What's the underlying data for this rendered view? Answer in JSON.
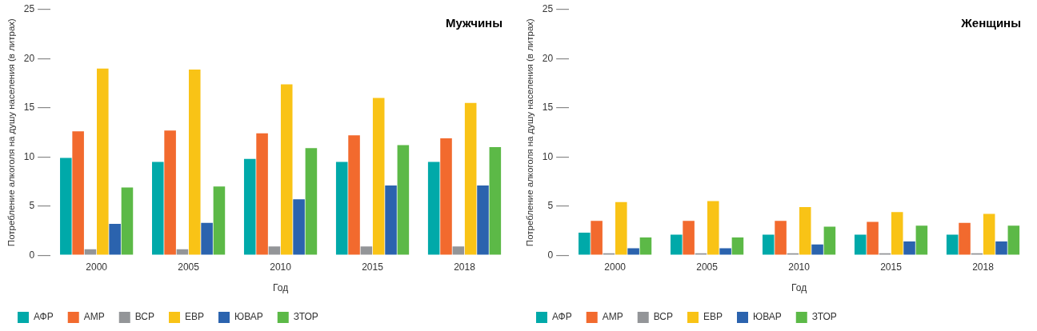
{
  "chart_data": [
    {
      "type": "bar",
      "title": "Мужчины",
      "xlabel": "Год",
      "ylabel": "Потребление алкоголя на душу населения (в литрах)",
      "categories": [
        "2000",
        "2005",
        "2010",
        "2015",
        "2018"
      ],
      "series": [
        {
          "name": "АФР",
          "color": "#00a9a9",
          "values": [
            9.9,
            9.5,
            9.8,
            9.5,
            9.5
          ]
        },
        {
          "name": "АМР",
          "color": "#f26a2e",
          "values": [
            12.6,
            12.7,
            12.4,
            12.2,
            11.9
          ]
        },
        {
          "name": "ВСР",
          "color": "#939598",
          "values": [
            0.6,
            0.6,
            0.9,
            0.9,
            0.9
          ]
        },
        {
          "name": "ЕВР",
          "color": "#f9c316",
          "values": [
            19.0,
            18.9,
            17.4,
            16.0,
            15.5
          ]
        },
        {
          "name": "ЮВАР",
          "color": "#2b63ae",
          "values": [
            3.2,
            3.3,
            5.7,
            7.1,
            7.1
          ]
        },
        {
          "name": "ЗТОР",
          "color": "#5cb947",
          "values": [
            6.9,
            7.0,
            10.9,
            11.2,
            11.0
          ]
        }
      ],
      "ylim": [
        0,
        25
      ],
      "yticks": [
        0,
        5,
        10,
        15,
        20,
        25
      ],
      "grid": false,
      "legend": "bottom"
    },
    {
      "type": "bar",
      "title": "Женщины",
      "xlabel": "Год",
      "ylabel": "Потребление алкоголя на душу населения (в литрах)",
      "categories": [
        "2000",
        "2005",
        "2010",
        "2015",
        "2018"
      ],
      "series": [
        {
          "name": "АФР",
          "color": "#00a9a9",
          "values": [
            2.3,
            2.1,
            2.1,
            2.1,
            2.1
          ]
        },
        {
          "name": "АМР",
          "color": "#f26a2e",
          "values": [
            3.5,
            3.5,
            3.5,
            3.4,
            3.3
          ]
        },
        {
          "name": "ВСР",
          "color": "#939598",
          "values": [
            0.2,
            0.2,
            0.2,
            0.2,
            0.2
          ]
        },
        {
          "name": "ЕВР",
          "color": "#f9c316",
          "values": [
            5.4,
            5.5,
            4.9,
            4.4,
            4.2
          ]
        },
        {
          "name": "ЮВАР",
          "color": "#2b63ae",
          "values": [
            0.7,
            0.7,
            1.1,
            1.4,
            1.4
          ]
        },
        {
          "name": "ЗТОР",
          "color": "#5cb947",
          "values": [
            1.8,
            1.8,
            2.9,
            3.0,
            3.0
          ]
        }
      ],
      "ylim": [
        0,
        25
      ],
      "yticks": [
        0,
        5,
        10,
        15,
        20,
        25
      ],
      "grid": false,
      "legend": "bottom"
    }
  ]
}
